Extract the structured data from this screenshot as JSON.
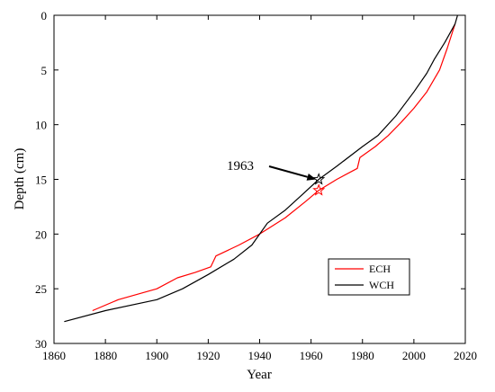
{
  "chart_data": {
    "type": "line",
    "xlabel": "Year",
    "ylabel": "Depth (cm)",
    "xlim": [
      1860,
      2020
    ],
    "ylim": [
      0,
      30
    ],
    "y_inverted": true,
    "xticks": [
      1860,
      1880,
      1900,
      1920,
      1940,
      1960,
      1980,
      2000,
      2020
    ],
    "yticks": [
      0,
      5,
      10,
      15,
      20,
      25,
      30
    ],
    "grid": false,
    "legend_position": "lower-right",
    "series": [
      {
        "name": "ECH",
        "color": "#ff0000",
        "x": [
          1875,
          1885,
          1900,
          1908,
          1915,
          1921,
          1923,
          1932,
          1940,
          1950,
          1958,
          1963,
          1970,
          1978,
          1979,
          1985,
          1990,
          1995,
          2000,
          2005,
          2010,
          2013,
          2016
        ],
        "y": [
          27,
          26,
          25,
          24,
          23.5,
          23,
          22,
          21,
          20,
          18.5,
          17,
          16,
          15,
          14,
          13,
          12,
          11,
          9.8,
          8.5,
          7,
          5,
          3,
          0.8
        ]
      },
      {
        "name": "WCH",
        "color": "#000000",
        "x": [
          1864,
          1880,
          1900,
          1910,
          1920,
          1930,
          1937,
          1943,
          1950,
          1957,
          1963,
          1970,
          1980,
          1986,
          1993,
          2000,
          2005,
          2008,
          2012,
          2016,
          2017
        ],
        "y": [
          28,
          27,
          26,
          25,
          23.7,
          22.3,
          21,
          19,
          17.8,
          16.3,
          15,
          13.8,
          12,
          11,
          9.2,
          7,
          5.3,
          4,
          2.5,
          0.8,
          0
        ]
      }
    ],
    "markers": [
      {
        "series": "ECH",
        "shape": "star",
        "x": 1963,
        "y": 16,
        "color": "#ff0000"
      },
      {
        "series": "WCH",
        "shape": "star",
        "x": 1963,
        "y": 15,
        "color": "#000000"
      }
    ],
    "annotations": [
      {
        "text": "1963",
        "arrow_to": {
          "x": 1962,
          "y": 15
        }
      }
    ]
  }
}
